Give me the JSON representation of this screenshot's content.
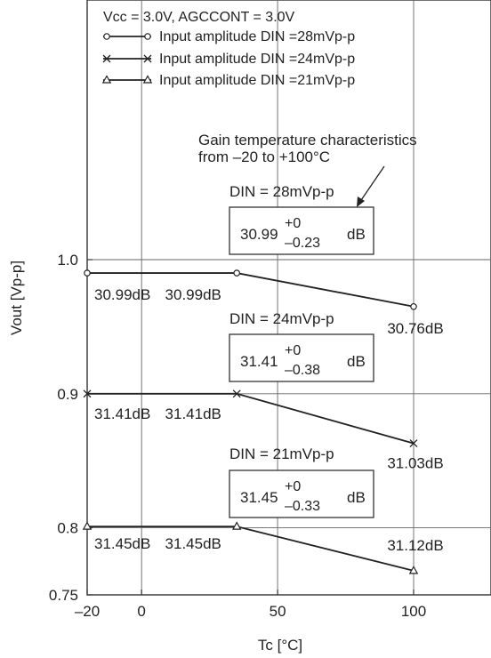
{
  "chart_data": {
    "type": "line",
    "condition": "Vcc = 3.0V, AGCCONT = 3.0V",
    "xlabel": "Tc [°C]",
    "ylabel": "Vout [Vp-p]",
    "xlim": [
      -20,
      128
    ],
    "ylim": [
      0.75,
      1.08
    ],
    "xticks": [
      -20,
      0,
      50,
      100
    ],
    "yticks": [
      0.75,
      0.8,
      0.9,
      1.0
    ],
    "grid": true,
    "legend_position": "top-left",
    "series": [
      {
        "name": "Input amplitude DIN =28mVp-p",
        "marker": "circle",
        "x": [
          -20,
          35,
          100
        ],
        "y": [
          0.99,
          0.99,
          0.965
        ],
        "point_labels": [
          "30.99dB",
          "30.99dB",
          "30.76dB"
        ]
      },
      {
        "name": "Input amplitude DIN =24mVp-p",
        "marker": "cross",
        "x": [
          -20,
          35,
          100
        ],
        "y": [
          0.9,
          0.9,
          0.863
        ],
        "point_labels": [
          "31.41dB",
          "31.41dB",
          "31.03dB"
        ]
      },
      {
        "name": "Input amplitude DIN =21mVp-p",
        "marker": "triangle",
        "x": [
          -20,
          35,
          100
        ],
        "y": [
          0.801,
          0.801,
          0.768
        ],
        "point_labels": [
          "31.45dB",
          "31.45dB",
          "31.12dB"
        ]
      }
    ],
    "annotation": {
      "line1": "Gain temperature characteristics",
      "line2": "from –20 to +100°C"
    },
    "gain_boxes": [
      {
        "din_label": "DIN = 28mVp-p",
        "value": "30.99",
        "plus": "+0",
        "minus": "–0.23",
        "unit": "dB"
      },
      {
        "din_label": "DIN = 24mVp-p",
        "value": "31.41",
        "plus": "+0",
        "minus": "–0.38",
        "unit": "dB"
      },
      {
        "din_label": "DIN = 21mVp-p",
        "value": "31.45",
        "plus": "+0",
        "minus": "–0.33",
        "unit": "dB"
      }
    ]
  }
}
